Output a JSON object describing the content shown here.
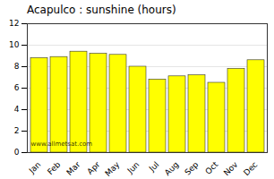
{
  "chart_data": {
    "type": "bar",
    "title": "Acapulco : sunshine (hours)",
    "categories": [
      "Jan",
      "Feb",
      "Mar",
      "Apr",
      "May",
      "Jun",
      "Jul",
      "Aug",
      "Sep",
      "Oct",
      "Nov",
      "Dec"
    ],
    "values": [
      8.8,
      8.9,
      9.4,
      9.2,
      9.1,
      8.0,
      6.8,
      7.1,
      7.2,
      6.5,
      7.8,
      8.6
    ],
    "color": "#FFFF00",
    "ylim": [
      0,
      12
    ],
    "yticks": [
      0,
      2,
      4,
      6,
      8,
      10,
      12
    ],
    "grid": true,
    "annotations": [
      "www.allmetsat.com"
    ]
  }
}
